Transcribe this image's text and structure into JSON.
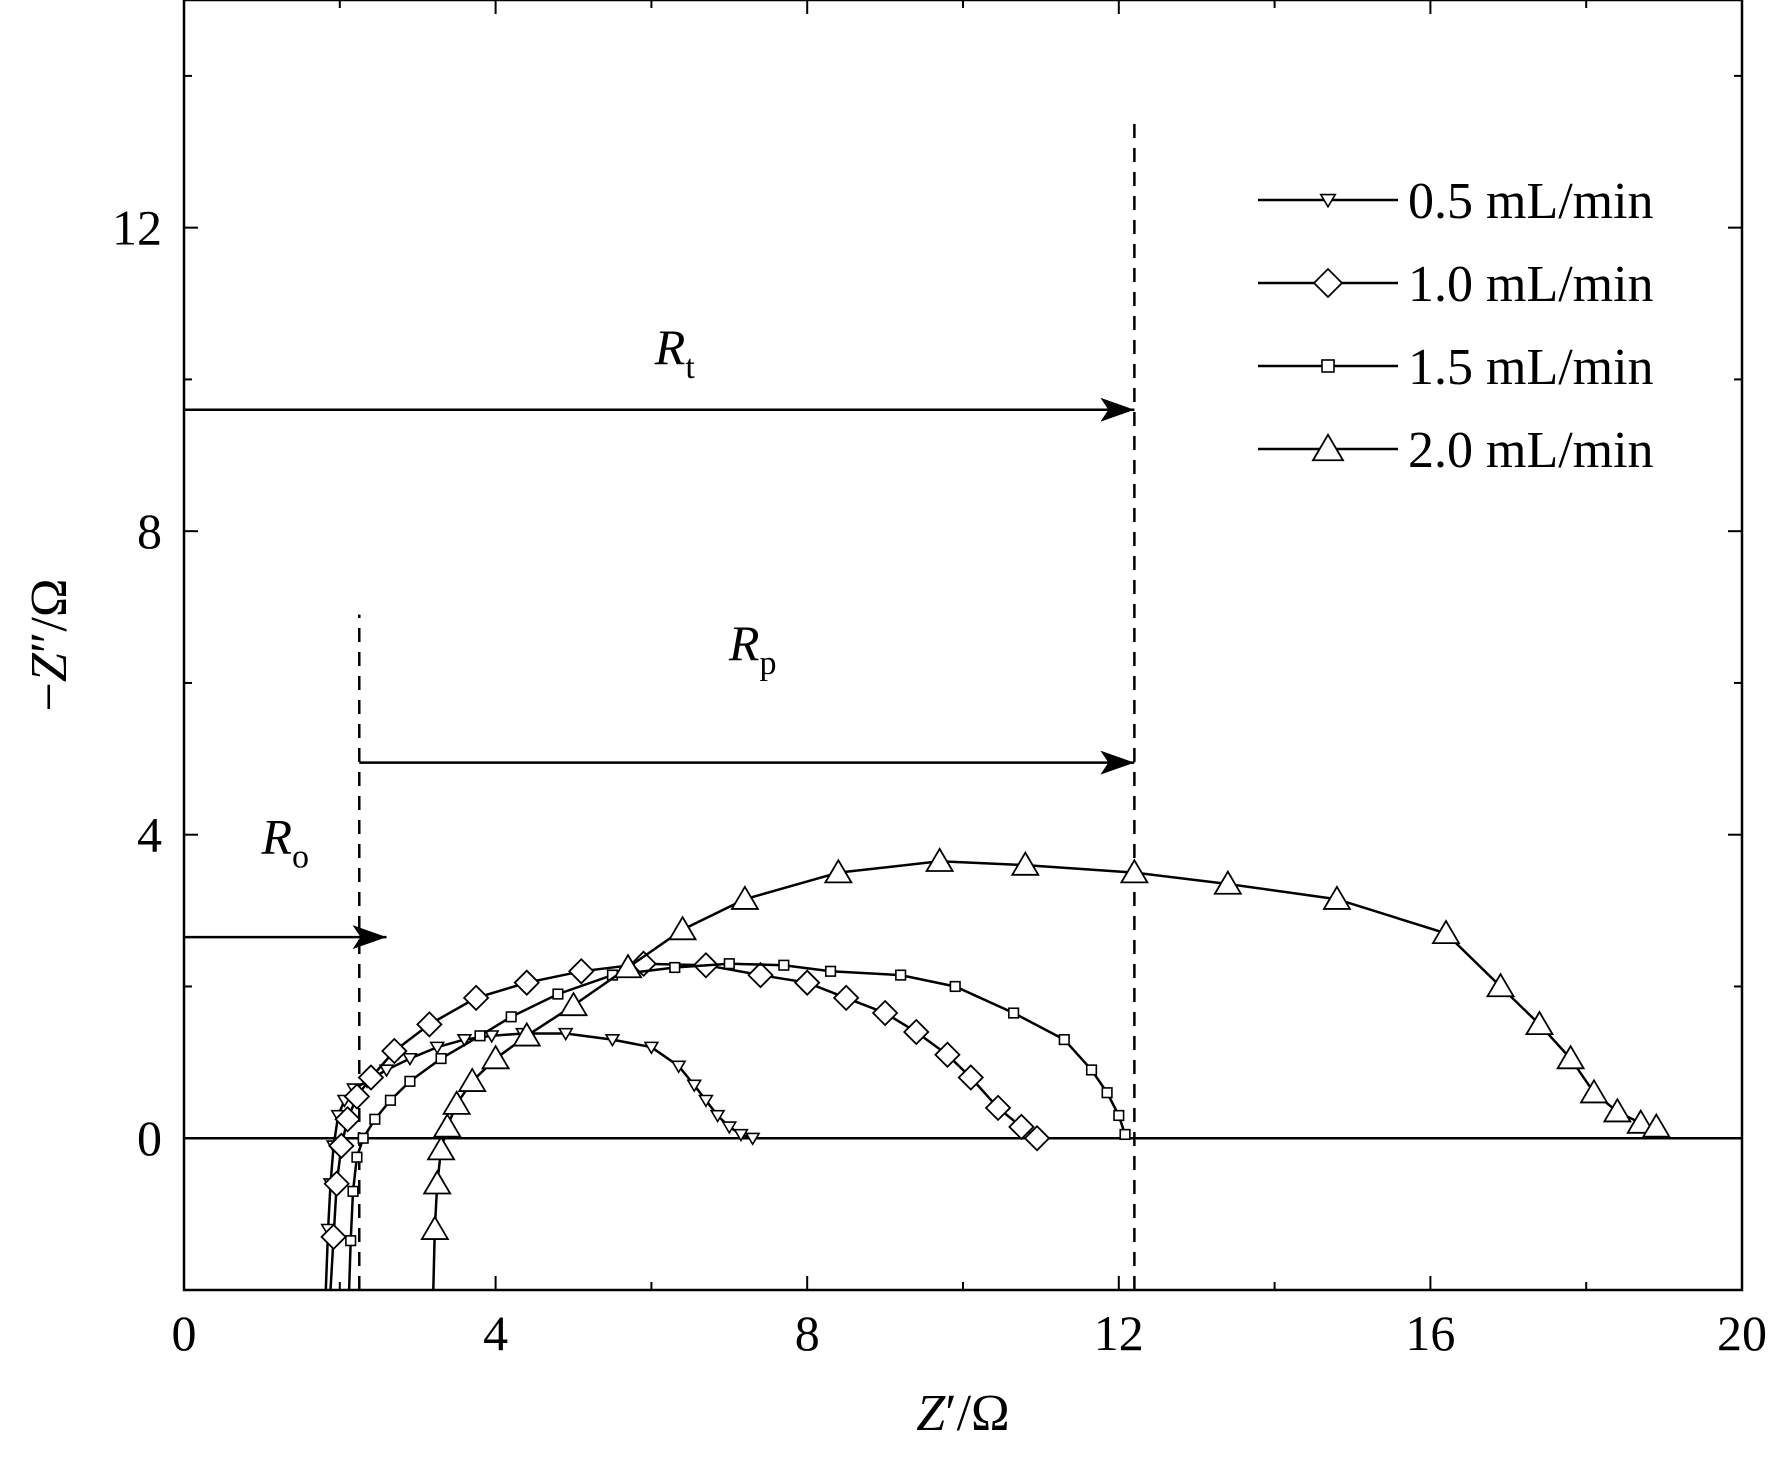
{
  "chart_data": {
    "type": "line",
    "title": "",
    "xlabel": {
      "italic": "Z",
      "rest": "′/Ω"
    },
    "ylabel": {
      "prefix": "−",
      "italic": "Z",
      "rest": "″/Ω"
    },
    "xlim": [
      0,
      20
    ],
    "ylim": [
      -2,
      15
    ],
    "xticks": [
      0,
      4,
      8,
      12,
      16,
      20
    ],
    "yticks": [
      0,
      4,
      8,
      12
    ],
    "x_minor_step": 2,
    "y_minor_step": 2,
    "grid": false,
    "legend_position": "top-right",
    "zero_line": 0,
    "series": [
      {
        "name": "0.5 mL/min",
        "marker": "triangle-down",
        "x": [
          1.82,
          1.85,
          1.88,
          1.92,
          1.98,
          2.06,
          2.18,
          2.35,
          2.6,
          2.9,
          3.25,
          3.6,
          3.95,
          4.35,
          4.9,
          5.5,
          6.0,
          6.35,
          6.55,
          6.7,
          6.85,
          7.0,
          7.15,
          7.3
        ],
        "y": [
          -2.0,
          -1.2,
          -0.6,
          -0.1,
          0.3,
          0.5,
          0.65,
          0.75,
          0.9,
          1.05,
          1.2,
          1.3,
          1.35,
          1.38,
          1.38,
          1.3,
          1.2,
          0.95,
          0.7,
          0.5,
          0.3,
          0.15,
          0.05,
          0.0
        ]
      },
      {
        "name": "1.0 mL/min",
        "marker": "diamond",
        "x": [
          1.88,
          1.92,
          1.96,
          2.02,
          2.1,
          2.22,
          2.4,
          2.7,
          3.15,
          3.75,
          4.4,
          5.1,
          5.9,
          6.7,
          7.4,
          8.0,
          8.5,
          9.0,
          9.4,
          9.8,
          10.1,
          10.45,
          10.75,
          10.95
        ],
        "y": [
          -2.0,
          -1.3,
          -0.6,
          -0.1,
          0.25,
          0.55,
          0.8,
          1.15,
          1.5,
          1.85,
          2.05,
          2.2,
          2.3,
          2.28,
          2.15,
          2.05,
          1.85,
          1.65,
          1.4,
          1.1,
          0.8,
          0.4,
          0.15,
          0.0
        ]
      },
      {
        "name": "1.5 mL/min",
        "marker": "square",
        "x": [
          2.12,
          2.14,
          2.17,
          2.22,
          2.3,
          2.45,
          2.65,
          2.9,
          3.3,
          3.8,
          4.2,
          4.8,
          5.5,
          6.3,
          7.0,
          7.7,
          8.3,
          9.2,
          9.9,
          10.65,
          11.3,
          11.65,
          11.85,
          12.0,
          12.08
        ],
        "y": [
          -2.0,
          -1.35,
          -0.7,
          -0.25,
          0.0,
          0.25,
          0.5,
          0.75,
          1.05,
          1.35,
          1.6,
          1.9,
          2.15,
          2.25,
          2.3,
          2.28,
          2.2,
          2.15,
          2.0,
          1.65,
          1.3,
          0.9,
          0.6,
          0.3,
          0.05
        ]
      },
      {
        "name": "2.0 mL/min",
        "marker": "triangle-up",
        "x": [
          3.2,
          3.22,
          3.25,
          3.3,
          3.38,
          3.5,
          3.7,
          4.0,
          4.4,
          5.0,
          5.7,
          6.4,
          7.2,
          8.4,
          9.7,
          10.8,
          12.2,
          13.4,
          14.8,
          16.2,
          16.9,
          17.4,
          17.8,
          18.1,
          18.4,
          18.7,
          18.9
        ],
        "y": [
          -2.0,
          -1.2,
          -0.6,
          -0.15,
          0.15,
          0.45,
          0.75,
          1.05,
          1.35,
          1.75,
          2.25,
          2.75,
          3.15,
          3.5,
          3.65,
          3.6,
          3.5,
          3.35,
          3.15,
          2.7,
          2.0,
          1.5,
          1.05,
          0.6,
          0.35,
          0.2,
          0.15
        ]
      }
    ],
    "annotations": [
      {
        "label": "R",
        "sub": "t",
        "arrow_y": 9.6,
        "arrow_x_from": 0,
        "arrow_x_to": 12.2,
        "label_x": 6.3,
        "label_y": 10.2
      },
      {
        "label": "R",
        "sub": "p",
        "arrow_y": 4.95,
        "arrow_x_from": 2.25,
        "arrow_x_to": 12.2,
        "label_x": 7.3,
        "label_y": 6.3
      },
      {
        "label": "R",
        "sub": "o",
        "arrow_y": 2.65,
        "arrow_x_from": 0,
        "arrow_x_to": 2.6,
        "label_x": 1.3,
        "label_y": 3.75
      }
    ],
    "vlines": [
      {
        "x": 2.25,
        "y_from": -2.0,
        "y_to": 6.9
      },
      {
        "x": 12.2,
        "y_from": -2.0,
        "y_to": 13.4
      }
    ]
  }
}
